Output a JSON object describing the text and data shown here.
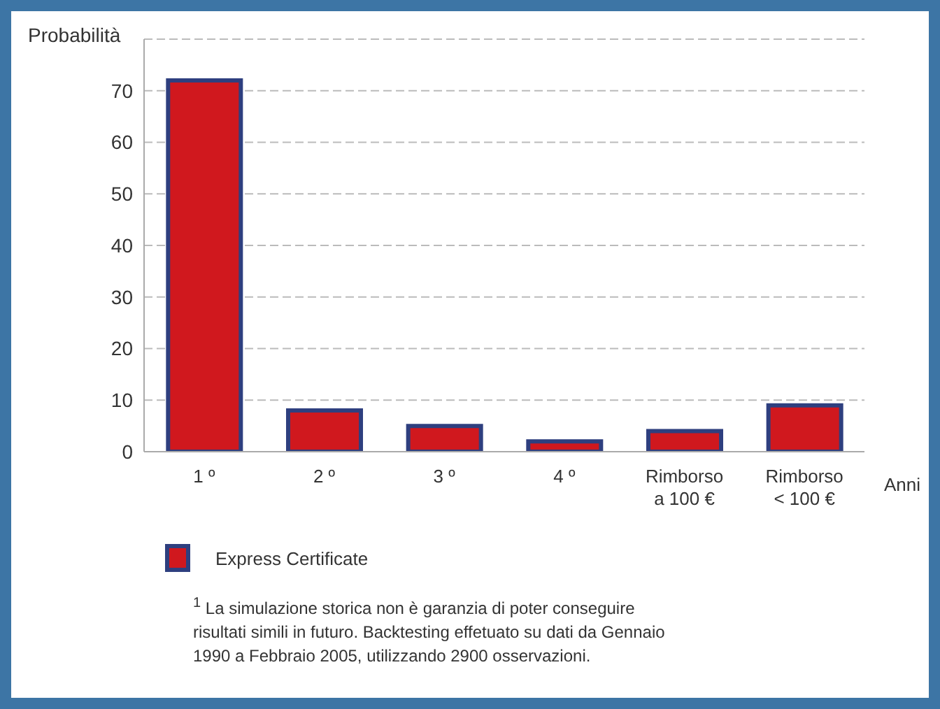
{
  "chart_data": {
    "type": "bar",
    "ylabel": "Probabilità",
    "xlabel": "Anni",
    "categories": [
      "1 º",
      "2 º",
      "3 º",
      "4 º",
      "Rimborso\na 100 €",
      "Rimborso\n< 100 €"
    ],
    "series": [
      {
        "name": "Express Certificate",
        "color": "#d0181e",
        "values": [
          72,
          8,
          5,
          2,
          4,
          9
        ]
      }
    ],
    "ylim": [
      0,
      80
    ],
    "yticks": [
      0,
      10,
      20,
      30,
      40,
      50,
      60,
      70,
      {
        "value": 80,
        "label": null
      }
    ],
    "grid": "y",
    "legend": "bottom left",
    "annotations": [
      "$^{1}$ La simulazione storica non è garanzia di poter conseguire risultati simili in futuro. Backtesting effetuato su dati da Gennaio 1990 a Febbraio 2005, utilizzando 2900 osservazioni."
    ]
  }
}
